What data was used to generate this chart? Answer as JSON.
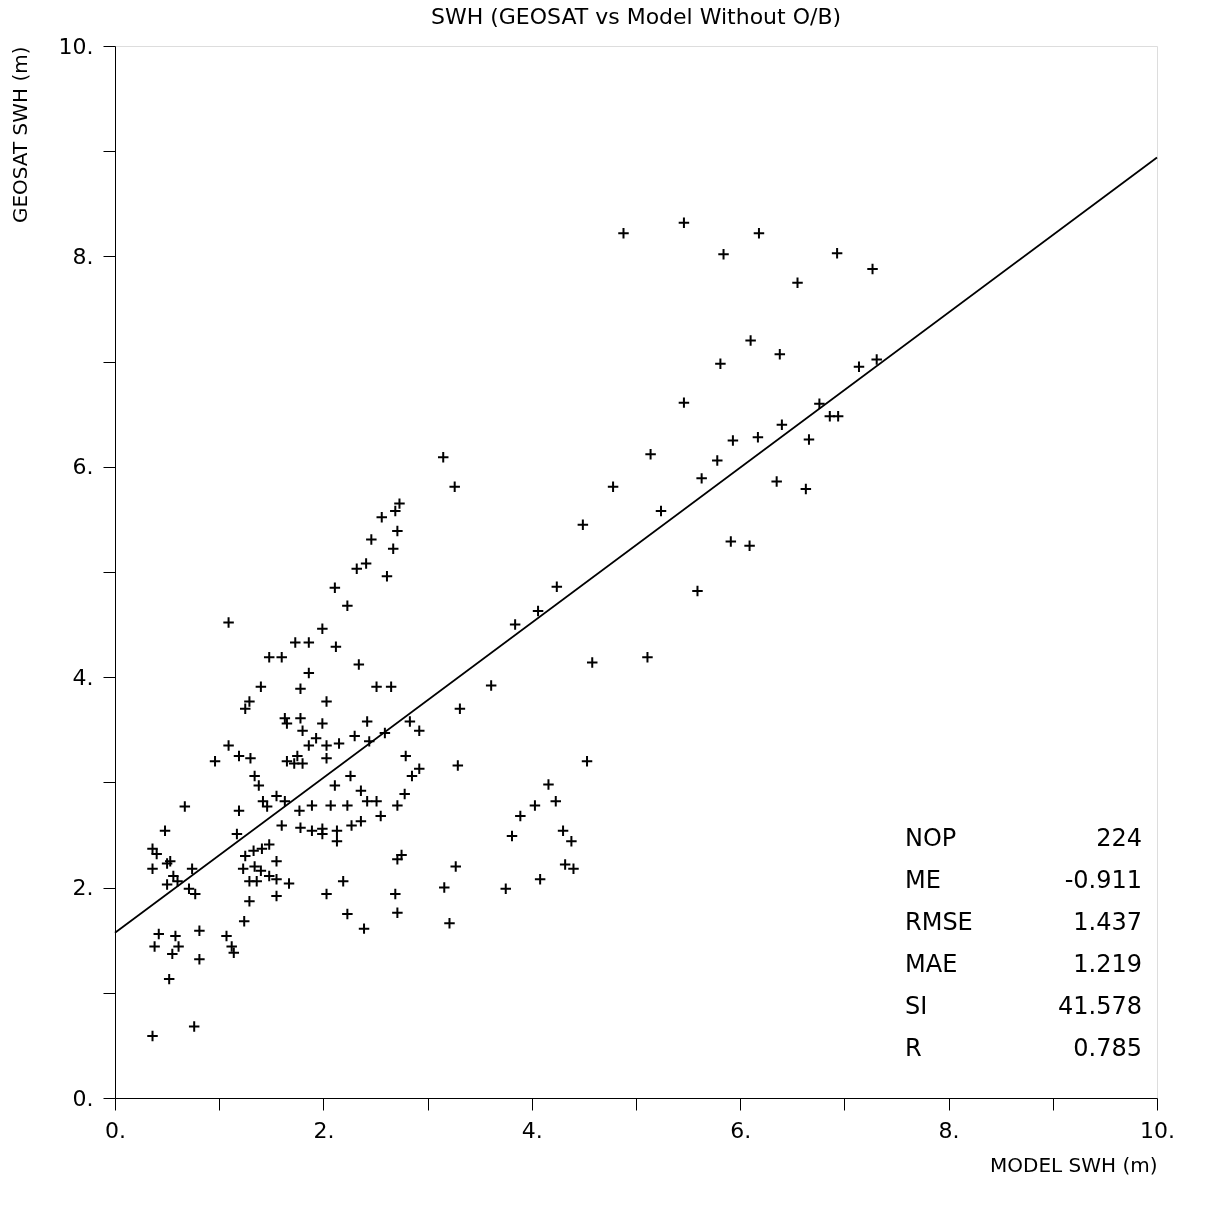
{
  "chart_data": {
    "type": "scatter",
    "title": "SWH (GEOSAT vs Model Without O/B)",
    "xlabel": "MODEL SWH (m)",
    "ylabel": "GEOSAT SWH (m)",
    "xlim": [
      0,
      10
    ],
    "ylim": [
      0,
      10
    ],
    "xticks": [
      {
        "value": 0,
        "label": "0."
      },
      {
        "value": 1,
        "label": null
      },
      {
        "value": 2,
        "label": "2."
      },
      {
        "value": 3,
        "label": null
      },
      {
        "value": 4,
        "label": "4."
      },
      {
        "value": 5,
        "label": null
      },
      {
        "value": 6,
        "label": "6."
      },
      {
        "value": 7,
        "label": null
      },
      {
        "value": 8,
        "label": "8."
      },
      {
        "value": 9,
        "label": null
      },
      {
        "value": 10,
        "label": "10."
      }
    ],
    "yticks": [
      {
        "value": 0,
        "label": "0."
      },
      {
        "value": 1,
        "label": null
      },
      {
        "value": 2,
        "label": "2."
      },
      {
        "value": 3,
        "label": null
      },
      {
        "value": 4,
        "label": "4."
      },
      {
        "value": 5,
        "label": null
      },
      {
        "value": 6,
        "label": "6."
      },
      {
        "value": 7,
        "label": null
      },
      {
        "value": 8,
        "label": "8."
      },
      {
        "value": 9,
        "label": null
      },
      {
        "value": 10,
        "label": "10."
      }
    ],
    "grid": false,
    "series": [
      {
        "color": "#000000",
        "marker": "cross",
        "x": [
          4.88,
          5.46,
          5.84,
          6.18,
          6.55,
          6.93,
          7.27,
          5.81,
          6.1,
          6.38,
          7.14,
          7.31,
          5.46,
          6.76,
          6.86,
          6.94,
          6.4,
          6.17,
          5.93,
          6.66,
          5.14,
          5.78,
          5.63,
          4.78,
          6.35,
          6.63,
          5.24,
          4.49,
          5.91,
          6.09,
          5.59,
          4.24,
          4.06,
          3.84,
          4.58,
          5.11,
          3.61,
          3.31,
          4.53,
          3.29,
          4.16,
          4.03,
          4.23,
          3.89,
          3.81,
          4.3,
          4.38,
          4.32,
          4.4,
          3.27,
          4.08,
          3.75,
          3.16,
          3.21,
          3.15,
          3.26,
          2.73,
          2.69,
          2.56,
          2.71,
          2.67,
          2.46,
          2.41,
          2.32,
          2.61,
          2.11,
          2.23,
          1.09,
          1.99,
          1.86,
          1.73,
          2.12,
          1.6,
          1.48,
          2.34,
          1.86,
          1.78,
          1.4,
          2.51,
          2.65,
          2.03,
          1.29,
          1.25,
          2.42,
          2.83,
          2.92,
          2.59,
          2.3,
          2.44,
          2.15,
          1.09,
          0.96,
          1.19,
          1.3,
          1.63,
          1.78,
          1.8,
          1.65,
          1.93,
          1.86,
          1.99,
          2.03,
          1.65,
          1.8,
          1.72,
          2.03,
          1.75,
          1.34,
          1.38,
          1.42,
          1.55,
          1.46,
          1.63,
          1.77,
          1.6,
          1.78,
          1.99,
          2.07,
          2.23,
          2.26,
          2.11,
          1.89,
          1.89,
          1.99,
          2.13,
          2.13,
          2.36,
          2.42,
          2.51,
          2.55,
          2.27,
          2.36,
          2.71,
          2.78,
          2.85,
          2.79,
          2.92,
          1.19,
          0.67,
          1.17,
          1.25,
          1.33,
          1.41,
          1.48,
          1.23,
          1.34,
          1.4,
          1.29,
          1.36,
          1.48,
          1.55,
          1.55,
          1.67,
          1.55,
          1.29,
          1.24,
          2.19,
          2.03,
          2.23,
          2.39,
          2.71,
          2.75,
          2.69,
          2.71,
          0.48,
          0.36,
          0.4,
          0.36,
          0.5,
          0.53,
          0.56,
          0.5,
          0.6,
          0.71,
          0.74,
          0.77,
          0.42,
          0.38,
          0.58,
          0.55,
          0.61,
          0.81,
          0.81,
          1.07,
          1.12,
          1.14,
          0.52,
          0.36,
          0.76
        ],
        "values": [
          8.22,
          8.32,
          8.02,
          8.22,
          7.75,
          8.03,
          7.88,
          6.98,
          7.2,
          7.07,
          6.95,
          7.02,
          6.61,
          6.6,
          6.48,
          6.48,
          6.4,
          6.28,
          6.25,
          6.26,
          6.12,
          6.06,
          5.89,
          5.81,
          5.86,
          5.79,
          5.58,
          5.45,
          5.29,
          5.25,
          4.82,
          4.86,
          4.63,
          4.5,
          4.14,
          4.19,
          3.92,
          3.7,
          3.2,
          3.16,
          2.98,
          2.78,
          2.82,
          2.68,
          2.49,
          2.54,
          2.44,
          2.22,
          2.18,
          2.2,
          2.08,
          1.99,
          2.0,
          1.66,
          6.09,
          5.81,
          5.65,
          5.58,
          5.52,
          5.39,
          5.22,
          5.31,
          5.08,
          5.03,
          4.96,
          4.85,
          4.68,
          4.52,
          4.46,
          4.33,
          4.33,
          4.29,
          4.19,
          4.19,
          4.12,
          4.04,
          3.89,
          3.91,
          3.91,
          3.91,
          3.77,
          3.77,
          3.7,
          3.58,
          3.58,
          3.49,
          3.47,
          3.44,
          3.39,
          3.37,
          3.35,
          3.2,
          3.25,
          3.23,
          3.61,
          3.61,
          3.49,
          3.56,
          3.42,
          3.35,
          3.56,
          3.35,
          3.2,
          3.18,
          3.18,
          3.23,
          3.25,
          3.06,
          2.97,
          2.82,
          2.87,
          2.77,
          2.82,
          2.73,
          2.59,
          2.57,
          2.56,
          2.78,
          2.78,
          3.06,
          2.97,
          2.78,
          2.54,
          2.51,
          2.44,
          2.54,
          2.92,
          2.82,
          2.82,
          2.68,
          2.59,
          2.63,
          2.78,
          2.89,
          3.06,
          3.25,
          3.13,
          2.73,
          2.77,
          2.51,
          2.3,
          2.35,
          2.37,
          2.41,
          2.18,
          2.2,
          2.16,
          2.06,
          2.06,
          2.11,
          2.08,
          2.25,
          2.04,
          1.92,
          1.87,
          1.68,
          2.06,
          1.94,
          1.75,
          1.61,
          2.27,
          2.31,
          1.94,
          1.76,
          2.54,
          2.37,
          2.32,
          2.18,
          2.23,
          2.25,
          2.11,
          2.03,
          2.06,
          1.99,
          2.18,
          1.94,
          1.56,
          1.44,
          1.54,
          1.37,
          1.44,
          1.59,
          1.32,
          1.54,
          1.44,
          1.38,
          1.13,
          0.59,
          0.68
        ]
      },
      {
        "type": "line",
        "color": "#000000",
        "x": [
          0,
          10
        ],
        "values": [
          1.57,
          8.94
        ]
      }
    ],
    "annotations": [
      "NOP 224",
      "ME -0.911",
      "RMSE 1.437",
      "MAE 1.219",
      "SI 41.578",
      "R 0.785"
    ]
  }
}
